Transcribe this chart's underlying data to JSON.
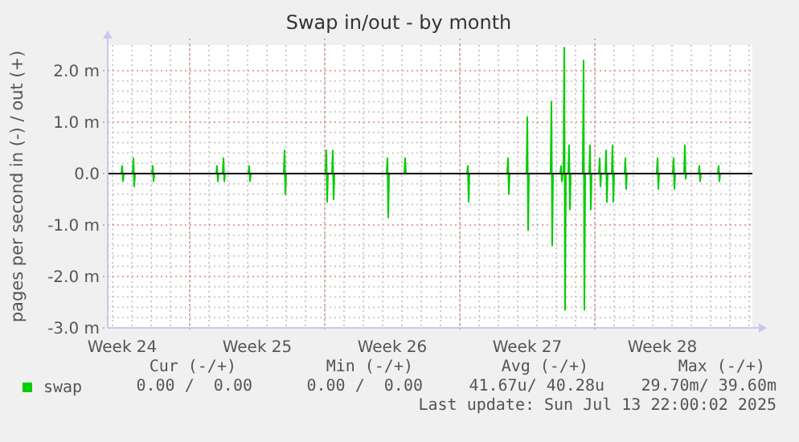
{
  "chart_data": {
    "type": "line",
    "title": "Swap in/out - by month",
    "ylabel": "pages per second in (-) / out (+)",
    "x": [
      "2025-06-11T18:00",
      "2025-06-12T11:00",
      "2025-06-12T12:00",
      "2025-06-12T13:00",
      "2025-06-12T14:00",
      "2025-06-13T01:00",
      "2025-06-13T02:00",
      "2025-06-13T03:00",
      "2025-06-13T04:00",
      "2025-06-14T01:00",
      "2025-06-14T02:00",
      "2025-06-14T03:00",
      "2025-06-14T04:00",
      "2025-06-17T09:00",
      "2025-06-17T10:00",
      "2025-06-17T11:00",
      "2025-06-17T12:00",
      "2025-06-17T17:00",
      "2025-06-17T18:00",
      "2025-06-17T19:00",
      "2025-06-17T20:00",
      "2025-06-19T01:00",
      "2025-06-19T02:00",
      "2025-06-19T03:00",
      "2025-06-19T04:00",
      "2025-06-20T21:00",
      "2025-06-20T22:00",
      "2025-06-20T23:00",
      "2025-06-21T00:00",
      "2025-06-23T01:00",
      "2025-06-23T02:00",
      "2025-06-23T03:00",
      "2025-06-23T04:00",
      "2025-06-23T09:00",
      "2025-06-23T10:00",
      "2025-06-23T11:00",
      "2025-06-23T12:00",
      "2025-06-26T05:00",
      "2025-06-26T06:00",
      "2025-06-26T07:00",
      "2025-06-26T08:00",
      "2025-06-27T03:00",
      "2025-06-27T04:00",
      "2025-06-27T05:00",
      "2025-06-30T09:00",
      "2025-06-30T10:00",
      "2025-06-30T11:00",
      "2025-06-30T12:00",
      "2025-07-02T11:00",
      "2025-07-02T12:00",
      "2025-07-02T13:00",
      "2025-07-02T14:00",
      "2025-07-03T11:00",
      "2025-07-03T12:00",
      "2025-07-03T13:00",
      "2025-07-03T14:00",
      "2025-07-04T17:00",
      "2025-07-04T18:00",
      "2025-07-04T19:00",
      "2025-07-04T20:00",
      "2025-07-05T05:00",
      "2025-07-05T06:00",
      "2025-07-05T07:00",
      "2025-07-05T08:00",
      "2025-07-05T09:00",
      "2025-07-05T10:00",
      "2025-07-05T11:00",
      "2025-07-05T12:00",
      "2025-07-05T15:00",
      "2025-07-05T16:00",
      "2025-07-05T17:00",
      "2025-07-05T18:00",
      "2025-07-06T09:00",
      "2025-07-06T10:00",
      "2025-07-06T11:00",
      "2025-07-06T12:00",
      "2025-07-06T17:00",
      "2025-07-06T18:00",
      "2025-07-06T19:00",
      "2025-07-06T20:00",
      "2025-07-07T05:00",
      "2025-07-07T06:00",
      "2025-07-07T07:00",
      "2025-07-07T08:00",
      "2025-07-07T13:00",
      "2025-07-07T14:00",
      "2025-07-07T15:00",
      "2025-07-07T16:00",
      "2025-07-07T21:00",
      "2025-07-07T22:00",
      "2025-07-07T23:00",
      "2025-07-08T00:00",
      "2025-07-08T13:00",
      "2025-07-08T14:00",
      "2025-07-08T15:00",
      "2025-07-08T16:00",
      "2025-07-10T05:00",
      "2025-07-10T06:00",
      "2025-07-10T07:00",
      "2025-07-10T08:00",
      "2025-07-11T01:00",
      "2025-07-11T02:00",
      "2025-07-11T03:00",
      "2025-07-11T04:00",
      "2025-07-11T15:00",
      "2025-07-11T16:00",
      "2025-07-11T17:00",
      "2025-07-11T18:00",
      "2025-07-12T09:00",
      "2025-07-12T10:00",
      "2025-07-12T11:00",
      "2025-07-12T12:00",
      "2025-07-13T09:00",
      "2025-07-13T10:00",
      "2025-07-13T11:00",
      "2025-07-13T12:00",
      "2025-07-13T22:00"
    ],
    "series": [
      {
        "name": "swap",
        "color": "#00cc00",
        "values": [
          0,
          0,
          0.15,
          -0.15,
          0,
          0,
          0.3,
          -0.25,
          0,
          0,
          0.15,
          -0.15,
          0,
          0,
          0.15,
          -0.15,
          0,
          0,
          0.3,
          -0.15,
          0,
          0,
          0.15,
          -0.15,
          0,
          0,
          0.45,
          -0.4,
          0,
          0,
          0.45,
          -0.55,
          0,
          0,
          0.45,
          -0.5,
          0,
          0,
          0.3,
          -0.85,
          0,
          0,
          0.3,
          0,
          0,
          0.15,
          -0.55,
          0,
          0,
          0.3,
          -0.4,
          0,
          0,
          1.1,
          -1.1,
          0,
          0,
          1.4,
          -1.4,
          0,
          0,
          0.15,
          -0.15,
          0,
          0,
          2.45,
          -2.65,
          0,
          0,
          0.55,
          -0.7,
          0,
          0,
          2.2,
          -2.65,
          0,
          0,
          0.55,
          -0.7,
          0,
          0,
          0.3,
          -0.25,
          0,
          0,
          0.45,
          -0.55,
          0,
          0,
          0.55,
          -0.55,
          0,
          0,
          0.3,
          -0.3,
          0,
          0,
          0.3,
          -0.3,
          0,
          0,
          0.3,
          -0.3,
          0,
          0,
          0.55,
          -0.1,
          0,
          0,
          0.15,
          -0.15,
          0,
          0,
          0.15,
          -0.15,
          0,
          0
        ]
      }
    ],
    "xlim": [
      "2025-06-11T18:00",
      "2025-07-15T04:00"
    ],
    "xticks": [
      {
        "value": "2025-06-12T12:00",
        "label": "Week 24"
      },
      {
        "value": "2025-06-16T00:00",
        "label": null
      },
      {
        "value": "2025-06-19T12:00",
        "label": "Week 25"
      },
      {
        "value": "2025-06-23T00:00",
        "label": null
      },
      {
        "value": "2025-06-26T12:00",
        "label": "Week 26"
      },
      {
        "value": "2025-06-30T00:00",
        "label": null
      },
      {
        "value": "2025-07-03T12:00",
        "label": "Week 27"
      },
      {
        "value": "2025-07-07T00:00",
        "label": null
      },
      {
        "value": "2025-07-10T12:00",
        "label": "Week 28"
      }
    ],
    "ylim": [
      -3,
      2.5
    ],
    "yticks": [
      {
        "value": -3,
        "label": "-3.0 m"
      },
      {
        "value": -2,
        "label": "-2.0 m"
      },
      {
        "value": -1,
        "label": "-1.0 m"
      },
      {
        "value": 0,
        "label": "0.0"
      },
      {
        "value": 1,
        "label": "1.0 m"
      },
      {
        "value": 2,
        "label": "2.0 m"
      }
    ],
    "ref_lines": [
      {
        "axis": "y",
        "value": 0,
        "color": "#000000"
      }
    ],
    "grid": true,
    "legend": "bottom",
    "line_style": "solid",
    "annotations": [
      "Cur (-/+)",
      "Min (-/+)",
      "Avg (-/+)",
      "Max (-/+)",
      "0.00 /  0.00",
      "0.00 /  0.00",
      "41.67u/ 40.28u",
      "29.70m/ 39.60m",
      "Last update: Sun Jul 13 22:00:02 2025"
    ]
  }
}
